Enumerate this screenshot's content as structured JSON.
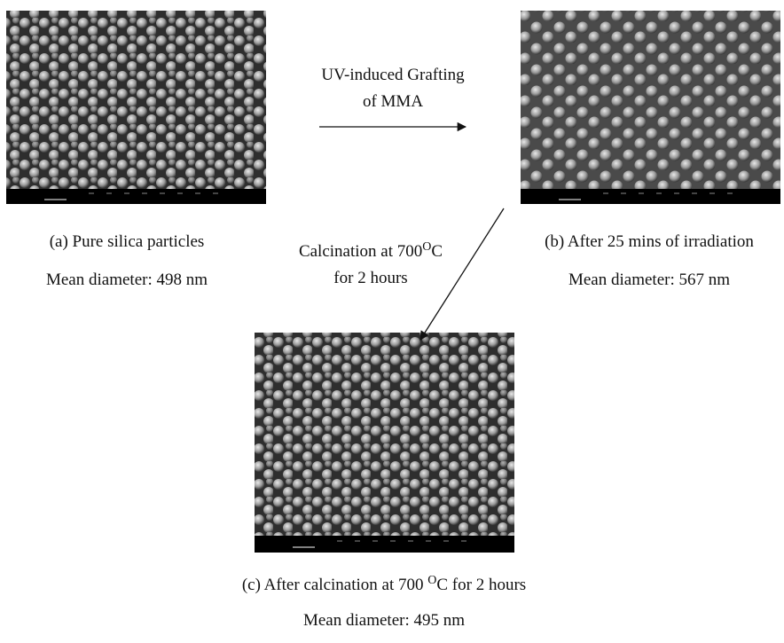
{
  "panels": [
    {
      "caption": "(a) Pure silica particles",
      "detail": "Mean diameter: 498 nm"
    },
    {
      "caption": "(b) After 25 mins of irradiation",
      "detail": "Mean diameter: 567 nm"
    },
    {
      "caption": {
        "before": "(c) After calcination at 700 ",
        "sup": "O",
        "after": "C for 2 hours"
      },
      "detail": "Mean diameter: 495 nm"
    }
  ],
  "arrows": [
    {
      "label_lines": [
        "UV-induced Grafting",
        "of MMA"
      ]
    },
    {
      "label_lines": [
        {
          "before": "Calcination at 700",
          "sup": "O",
          "after": "C"
        },
        "for 2 hours"
      ]
    }
  ]
}
